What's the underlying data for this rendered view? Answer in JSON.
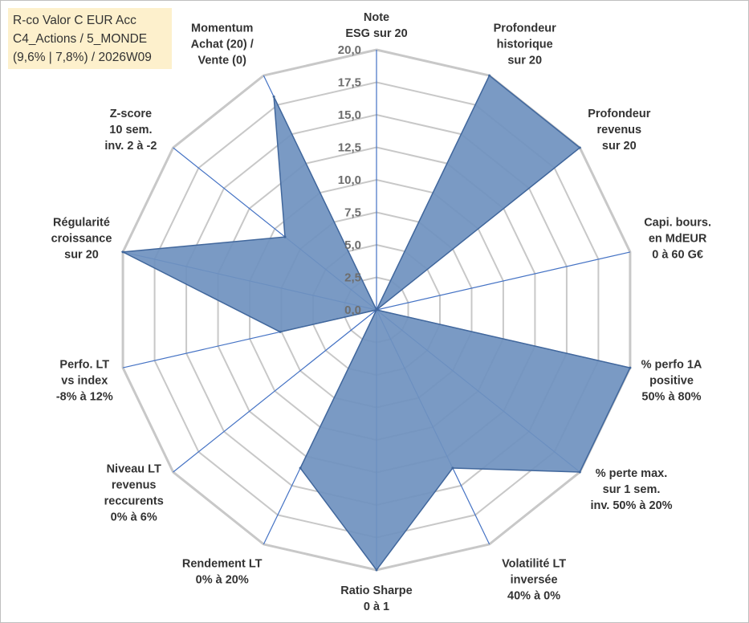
{
  "title_box": {
    "line1": "R-co Valor C EUR Acc",
    "line2": "C4_Actions / 5_MONDE",
    "line3": "(9,6% | 7,8%) / 2026W09"
  },
  "chart_data": {
    "type": "radar",
    "rmin": 0,
    "rmax": 20,
    "tick_values": [
      0,
      2.5,
      5,
      7.5,
      10,
      12.5,
      15,
      17.5,
      20
    ],
    "tick_labels": [
      "0,0",
      "2,5",
      "5,0",
      "7,5",
      "10,0",
      "12,5",
      "15,0",
      "17,5",
      "20,0"
    ],
    "categories": [
      [
        "Note",
        "ESG sur 20"
      ],
      [
        "Profondeur",
        "historique",
        "sur 20"
      ],
      [
        "Profondeur",
        "revenus",
        "sur 20"
      ],
      [
        "Capi. bours.",
        "en MdEUR",
        "0 à 60 G€"
      ],
      [
        "% perfo 1A",
        "positive",
        "50% à 80%"
      ],
      [
        "% perte max.",
        "sur 1 sem.",
        "inv. 50% à 20%"
      ],
      [
        "Volatilité LT",
        "inversée",
        "40% à 0%"
      ],
      [
        "Ratio Sharpe",
        "0 à 1"
      ],
      [
        "Rendement LT",
        "0% à 20%"
      ],
      [
        "Niveau LT",
        "revenus",
        "reccurents",
        "0% à 6%"
      ],
      [
        "Perfo. LT",
        "vs index",
        "-8% à 12%"
      ],
      [
        "Régularité",
        "croissance",
        "sur 20"
      ],
      [
        "Z-score",
        "10 sem.",
        "inv. 2 à -2"
      ],
      [
        "Momentum",
        "Achat (20) /",
        "Vente (0)"
      ]
    ],
    "series": [
      {
        "name": "R-co Valor C EUR Acc",
        "values": [
          0,
          20,
          20,
          0,
          20,
          20,
          13.5,
          20,
          13.5,
          0,
          7.6,
          20,
          9,
          18.2
        ]
      }
    ],
    "colors": {
      "fill": "#6f91bf",
      "stroke": "#41679c",
      "grid": "#c8c8c8",
      "axis": "#4472c4"
    }
  }
}
